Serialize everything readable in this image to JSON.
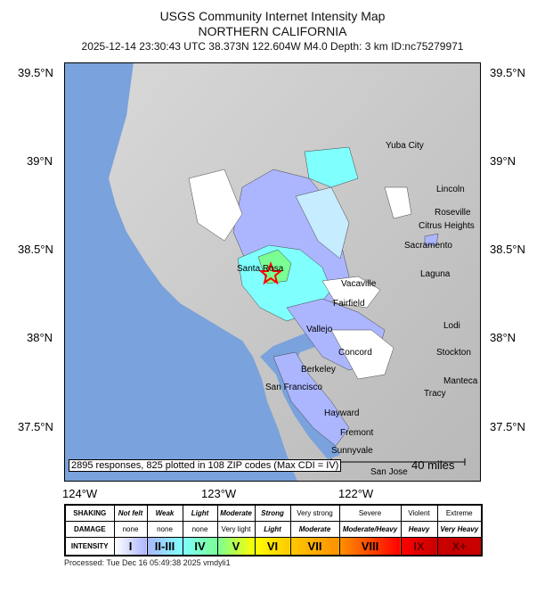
{
  "title": "USGS Community Internet Intensity Map",
  "region": "NORTHERN CALIFORNIA",
  "event_line": "2025-12-14 23:30:43 UTC 38.373N 122.604W M4.0 Depth: 3 km ID:nc75279971",
  "lat_labels": [
    "39.5°N",
    "39°N",
    "38.5°N",
    "38°N",
    "37.5°N"
  ],
  "lon_labels": [
    "124°W",
    "123°W",
    "122°W"
  ],
  "cities": [
    "Yuba City",
    "Lincoln",
    "Roseville",
    "Citrus Heights",
    "Sacramento",
    "Laguna",
    "Santa Rosa",
    "Vacaville",
    "Fairfield",
    "Vallejo",
    "Concord",
    "Berkeley",
    "San Francisco",
    "Hayward",
    "Fremont",
    "Sunnyvale",
    "San Jose",
    "Lodi",
    "Stockton",
    "Manteca",
    "Tracy"
  ],
  "summary": "2895 responses, 825 plotted in 108 ZIP codes (Max CDI = IV)",
  "scale_label": "40 miles",
  "colors": {
    "ocean": "#7aa2dc",
    "land": "#c8c8c8",
    "epicenter": "#ff0000"
  },
  "legend": {
    "headers": [
      "SHAKING",
      "DAMAGE",
      "INTENSITY"
    ],
    "shaking": [
      "Not felt",
      "Weak",
      "Light",
      "Moderate",
      "Strong",
      "Very strong",
      "Severe",
      "Violent",
      "Extreme"
    ],
    "damage": [
      "none",
      "none",
      "none",
      "Very light",
      "Light",
      "Moderate",
      "Moderate/Heavy",
      "Heavy",
      "Very Heavy"
    ],
    "intensity": [
      "I",
      "II-III",
      "IV",
      "V",
      "VI",
      "VII",
      "VIII",
      "IX",
      "X+"
    ],
    "intensity_colors": [
      "#ffffff",
      "#acb6ff",
      "#80ffff",
      "#7aff93",
      "#ffff00",
      "#ffc800",
      "#ff9100",
      "#ff0000",
      "#c80000"
    ]
  },
  "processed": "Processed: Tue Dec 16 05:49:38 2025 vmdyli1"
}
